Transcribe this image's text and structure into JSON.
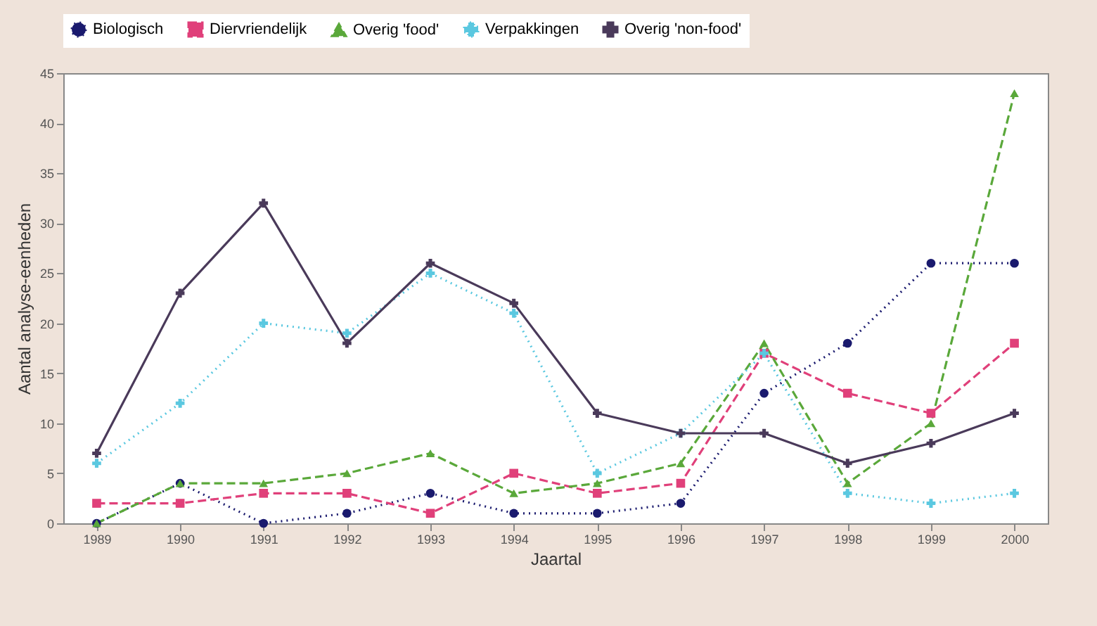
{
  "chart_data": {
    "type": "line",
    "xlabel": "Jaartal",
    "ylabel": "Aantal analyse-eenheden",
    "x": [
      1989,
      1990,
      1991,
      1992,
      1993,
      1994,
      1995,
      1996,
      1997,
      1998,
      1999,
      2000
    ],
    "xlim": [
      1988.6,
      2000.4
    ],
    "xticks": [
      1989,
      1990,
      1991,
      1992,
      1993,
      1994,
      1995,
      1996,
      1997,
      1998,
      1999,
      2000
    ],
    "ylim": [
      0,
      45
    ],
    "yticks": [
      0,
      5,
      10,
      15,
      20,
      25,
      30,
      35,
      40,
      45
    ],
    "grid": false,
    "legend": "top",
    "series": [
      {
        "name": "Biologisch",
        "color": "#1a1a6e",
        "marker": "circle",
        "line_style": "dotted",
        "values": [
          0,
          4,
          0,
          1,
          3,
          1,
          1,
          2,
          13,
          18,
          26,
          26
        ]
      },
      {
        "name": "Diervriendelijk",
        "color": "#e0407a",
        "marker": "square",
        "line_style": "dashed",
        "values": [
          2,
          2,
          3,
          3,
          1,
          5,
          3,
          4,
          17,
          13,
          11,
          18
        ]
      },
      {
        "name": "Overig 'food'",
        "color": "#5aa83a",
        "marker": "triangle",
        "line_style": "dashed",
        "values": [
          0,
          4,
          4,
          5,
          7,
          3,
          4,
          6,
          18,
          4,
          10,
          43
        ]
      },
      {
        "name": "Verpakkingen",
        "color": "#5bc8e0",
        "marker": "cross",
        "line_style": "dotted",
        "values": [
          6,
          12,
          20,
          19,
          25,
          21,
          5,
          9,
          17,
          3,
          2,
          3
        ]
      },
      {
        "name": "Overig 'non-food'",
        "color": "#4a3a5a",
        "marker": "cross",
        "line_style": "solid",
        "values": [
          7,
          23,
          32,
          18,
          26,
          22,
          11,
          9,
          9,
          6,
          8,
          11
        ]
      }
    ]
  }
}
